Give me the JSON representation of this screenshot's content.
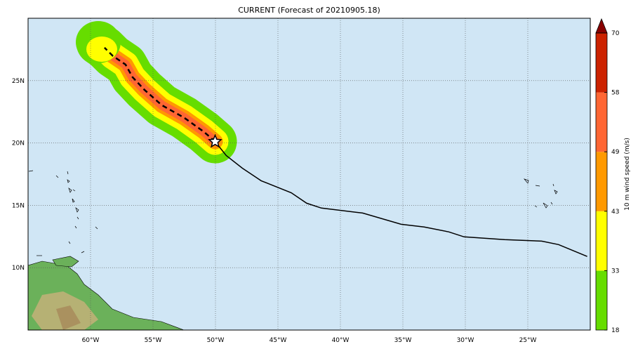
{
  "title": "CURRENT (Forecast of 20210905.18)",
  "map": {
    "lon_range": [
      -65,
      -20
    ],
    "lat_range": [
      5,
      30
    ],
    "lon_ticks": [
      {
        "v": -60,
        "label": "60°W"
      },
      {
        "v": -55,
        "label": "55°W"
      },
      {
        "v": -50,
        "label": "50°W"
      },
      {
        "v": -45,
        "label": "45°W"
      },
      {
        "v": -40,
        "label": "40°W"
      },
      {
        "v": -35,
        "label": "35°W"
      },
      {
        "v": -30,
        "label": "30°W"
      },
      {
        "v": -25,
        "label": "25°W"
      }
    ],
    "lat_ticks": [
      {
        "v": 25,
        "label": "25N"
      },
      {
        "v": 20,
        "label": "20N"
      },
      {
        "v": 15,
        "label": "15N"
      },
      {
        "v": 10,
        "label": "10N"
      }
    ],
    "ocean_color": "#d0e6f5",
    "past_track": [
      [
        -50.03,
        20.11
      ],
      [
        -49.14,
        18.99
      ],
      [
        -47.85,
        17.98
      ],
      [
        -46.34,
        16.97
      ],
      [
        -43.93,
        16.01
      ],
      [
        -42.7,
        15.17
      ],
      [
        -41.52,
        14.78
      ],
      [
        -38.22,
        14.38
      ],
      [
        -35.14,
        13.48
      ],
      [
        -33.29,
        13.26
      ],
      [
        -31.33,
        12.87
      ],
      [
        -30.1,
        12.47
      ],
      [
        -26.85,
        12.25
      ],
      [
        -23.89,
        12.13
      ],
      [
        -22.54,
        11.85
      ],
      [
        -20.25,
        10.9
      ]
    ],
    "forecast_track": [
      [
        -50.03,
        20.11
      ],
      [
        -50.93,
        20.9
      ],
      [
        -52.5,
        22.02
      ],
      [
        -54.29,
        23.03
      ],
      [
        -55.69,
        24.27
      ],
      [
        -56.64,
        25.28
      ],
      [
        -57.2,
        26.29
      ],
      [
        -58.21,
        26.97
      ],
      [
        -58.88,
        27.64
      ]
    ],
    "current_position": [
      -50.03,
      20.11
    ]
  },
  "colorbar": {
    "label": "10 m wind speed (m/s)",
    "levels": [
      {
        "v": 18,
        "label": "18"
      },
      {
        "v": 33,
        "label": "33"
      },
      {
        "v": 43,
        "label": "43"
      },
      {
        "v": 49,
        "label": "49"
      },
      {
        "v": 58,
        "label": "58"
      },
      {
        "v": 70,
        "label": "70"
      }
    ],
    "colors": [
      "#66dd00",
      "#ffff00",
      "#ff9900",
      "#ff6633",
      "#cc2200"
    ],
    "extend_color": "#880000"
  }
}
